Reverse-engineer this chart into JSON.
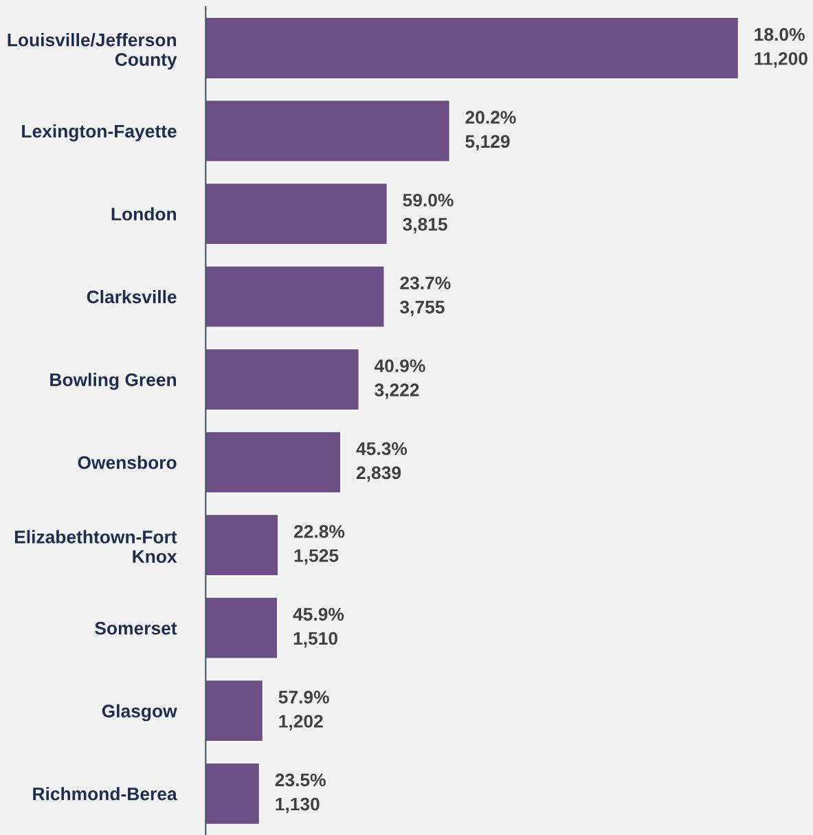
{
  "chart_data": {
    "type": "bar",
    "orientation": "horizontal",
    "color": "#6b4f85",
    "categories": [
      "Louisville/Jefferson\nCounty",
      "Lexington-Fayette",
      "London",
      "Clarksville",
      "Bowling Green",
      "Owensboro",
      "Elizabethtown-Fort\nKnox",
      "Somerset",
      "Glasgow",
      "Richmond-Berea"
    ],
    "values": [
      11200,
      5129,
      3815,
      3755,
      3222,
      2839,
      1525,
      1510,
      1202,
      1130
    ],
    "value_labels": [
      "18.0%\n11,200",
      "20.2%\n5,129",
      "59.0%\n3,815",
      "23.7%\n3,755",
      "40.9%\n3,222",
      "45.3%\n2,839",
      "22.8%\n1,525",
      "45.9%\n1,510",
      "57.9%\n1,202",
      "23.5%\n1,130"
    ],
    "grid": false
  }
}
